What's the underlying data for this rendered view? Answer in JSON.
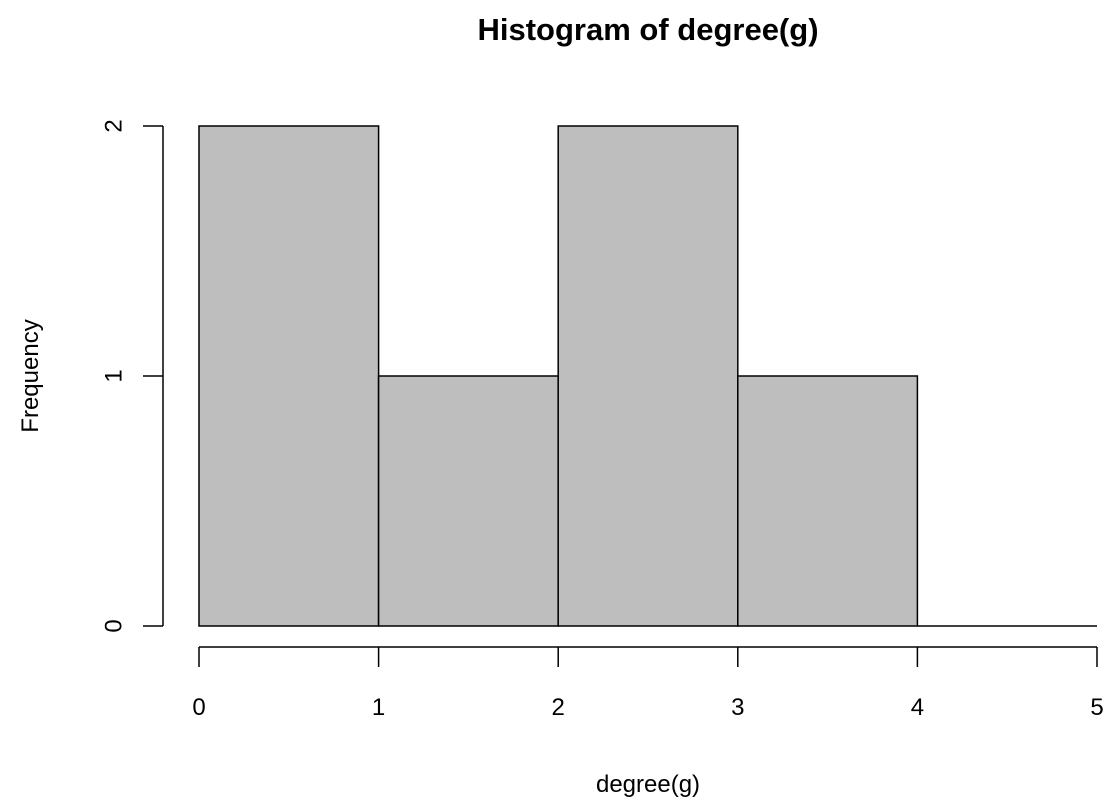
{
  "chart_data": {
    "type": "bar",
    "title": "Histogram of degree(g)",
    "xlabel": "degree(g)",
    "ylabel": "Frequency",
    "bins": [
      {
        "from": 0,
        "to": 1,
        "value": 2
      },
      {
        "from": 1,
        "to": 2,
        "value": 1
      },
      {
        "from": 2,
        "to": 3,
        "value": 2
      },
      {
        "from": 3,
        "to": 4,
        "value": 1
      },
      {
        "from": 4,
        "to": 5,
        "value": 0
      }
    ],
    "xlim": [
      0,
      5
    ],
    "ylim": [
      0,
      2
    ],
    "x_ticks": [
      "0",
      "1",
      "2",
      "3",
      "4",
      "5"
    ],
    "y_ticks": [
      "0",
      "1",
      "2"
    ],
    "bar_fill": "#bebebe",
    "bar_stroke": "#000000",
    "grid": false
  }
}
